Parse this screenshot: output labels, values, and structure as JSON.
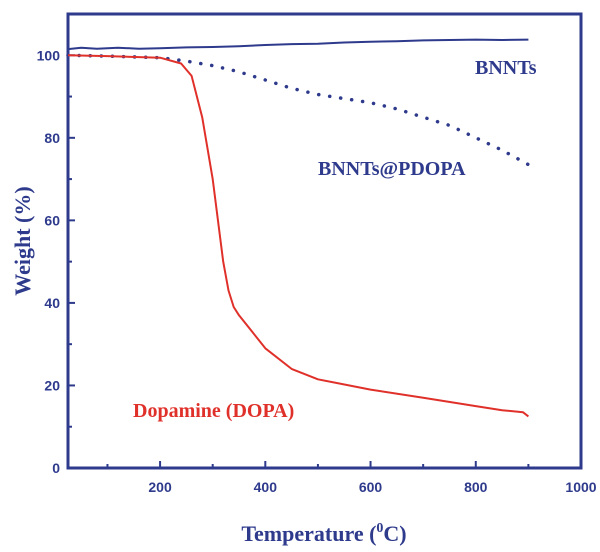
{
  "chart_data": {
    "type": "line",
    "xlabel": "Temperature (",
    "xlabel_sup": "0",
    "xlabel_end": "C)",
    "ylabel": "Weight (%)",
    "xlim": [
      25,
      1000
    ],
    "ylim": [
      0,
      110
    ],
    "xticks": [
      200,
      400,
      600,
      800,
      1000
    ],
    "yticks": [
      0,
      20,
      40,
      60,
      80,
      100
    ],
    "grid": false,
    "legend": "inline labels",
    "series": [
      {
        "name": "BNNTs",
        "color": "#2e3a8c",
        "style": "solid",
        "x": [
          25,
          50,
          80,
          120,
          160,
          200,
          250,
          300,
          350,
          400,
          450,
          500,
          550,
          600,
          650,
          700,
          750,
          800,
          850,
          900
        ],
        "y": [
          101.5,
          101.8,
          101.6,
          101.8,
          101.6,
          101.7,
          101.9,
          102.0,
          102.2,
          102.5,
          102.7,
          102.8,
          103.1,
          103.3,
          103.4,
          103.6,
          103.7,
          103.8,
          103.7,
          103.8
        ]
      },
      {
        "name": "BNNTs@PDOPA",
        "color": "#2e3a8c",
        "style": "dotted",
        "x": [
          25,
          100,
          200,
          250,
          300,
          350,
          400,
          450,
          500,
          550,
          600,
          650,
          700,
          750,
          800,
          850,
          900
        ],
        "y": [
          100,
          99.8,
          99.4,
          98.6,
          97.5,
          96,
          94,
          92,
          90.5,
          89.5,
          88.5,
          87,
          85,
          83,
          80,
          77,
          73.5
        ]
      },
      {
        "name": "Dopamine (DOPA)",
        "color": "#e0302a",
        "style": "solid",
        "x": [
          25,
          100,
          200,
          240,
          260,
          280,
          300,
          320,
          330,
          340,
          350,
          375,
          400,
          450,
          500,
          600,
          700,
          800,
          850,
          890,
          900
        ],
        "y": [
          100,
          99.8,
          99.4,
          98,
          95,
          85,
          70,
          50,
          43,
          39,
          37,
          33,
          29,
          24,
          21.5,
          19,
          17,
          15,
          14,
          13.5,
          12.5
        ]
      }
    ]
  }
}
